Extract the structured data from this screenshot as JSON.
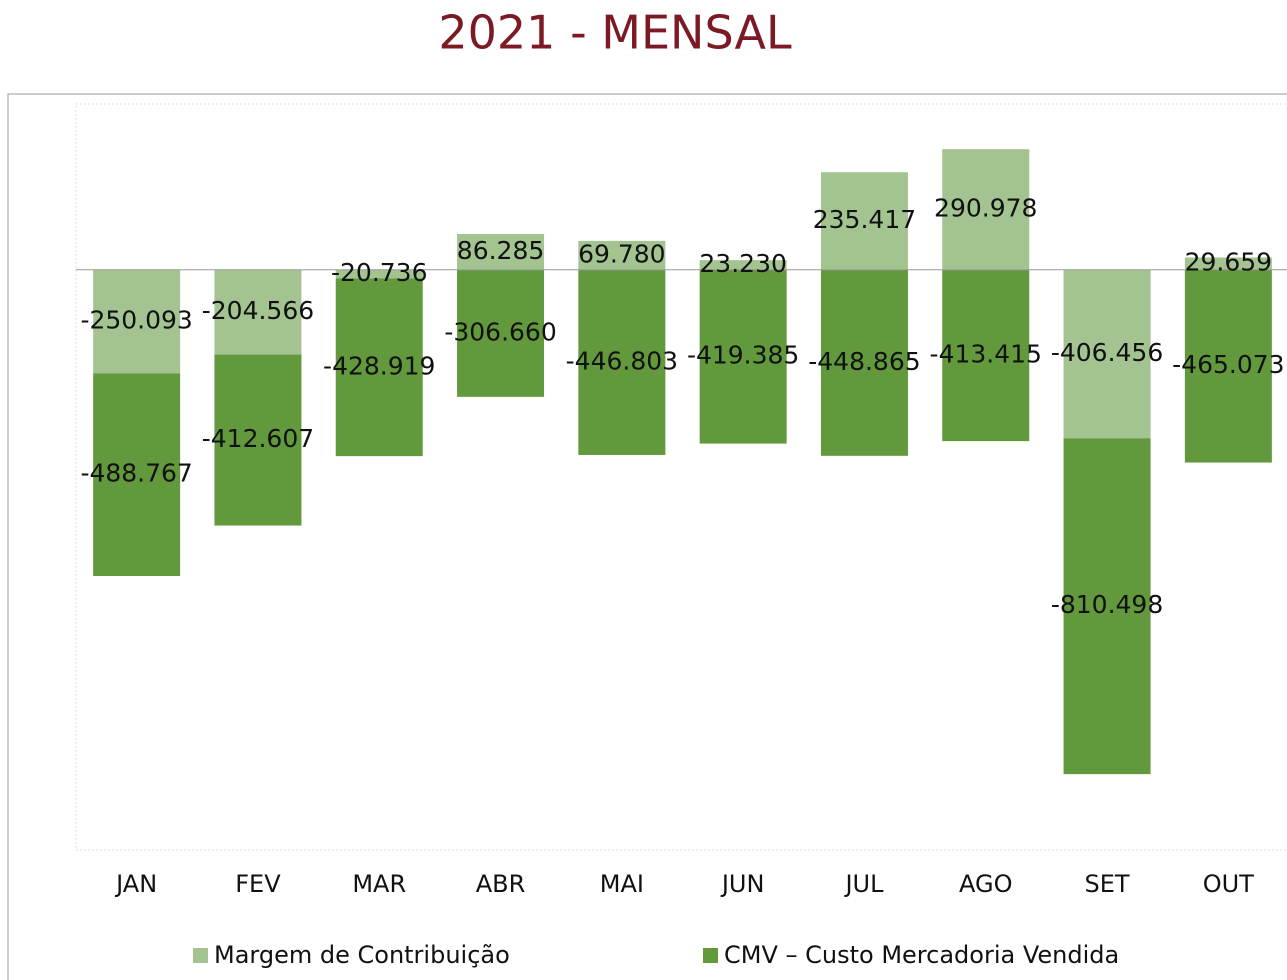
{
  "chart_data": {
    "type": "stacked_bar",
    "title": "2021 - MENSAL",
    "categories": [
      "JAN",
      "FEV",
      "MAR",
      "ABR",
      "MAI",
      "JUN",
      "JUL",
      "AGO",
      "SET",
      "OUT"
    ],
    "ylim": [
      -1400000,
      400000
    ],
    "series": [
      {
        "name": "Margem de Contribuição",
        "color": "#a3c490",
        "values": [
          -250093,
          -204566,
          -20736,
          86285,
          69780,
          23230,
          235417,
          290978,
          -406456,
          29659
        ],
        "value_labels": [
          "-250.093",
          "-204.566",
          "-20.736",
          "86.285",
          "69.780",
          "23.230",
          "235.417",
          "290.978",
          "-406.456",
          "29.659"
        ]
      },
      {
        "name": "CMV – Custo Mercadoria Vendida",
        "color": "#62993c",
        "values": [
          -488767,
          -412607,
          -428919,
          -306660,
          -446803,
          -419385,
          -448865,
          -413415,
          -810498,
          -465073
        ],
        "value_labels": [
          "-488.767",
          "-412.607",
          "-428.919",
          "-306.660",
          "-446.803",
          "-419.385",
          "-448.865",
          "-413.415",
          "-810.498",
          "-465.073"
        ]
      }
    ],
    "legend": "bottom"
  }
}
